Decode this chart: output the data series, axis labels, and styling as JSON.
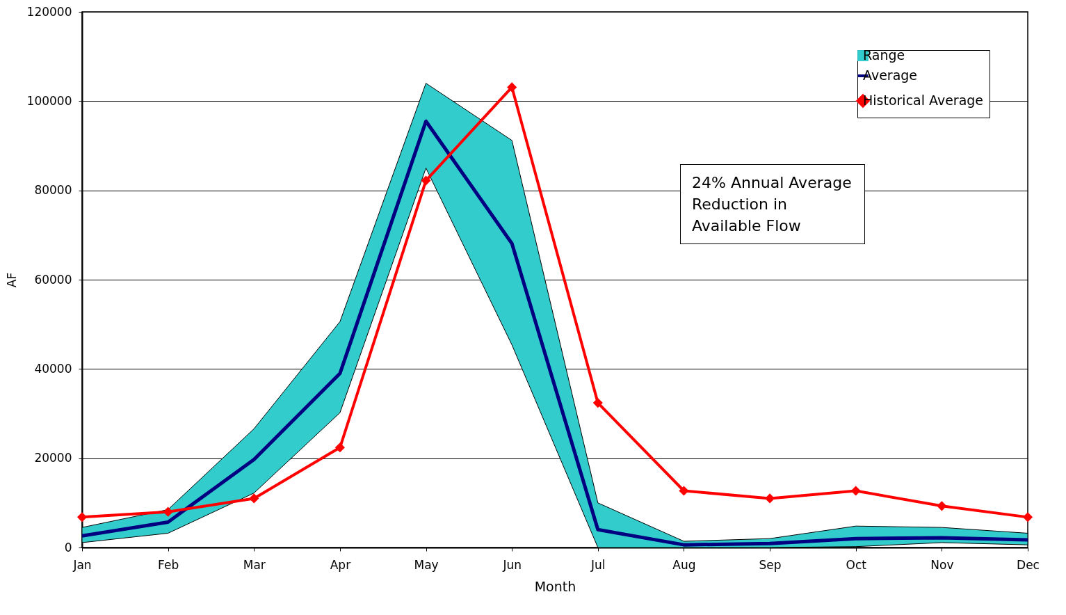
{
  "chart_data": {
    "type": "line",
    "xlabel": "Month",
    "ylabel": "AF",
    "categories": [
      "Jan",
      "Feb",
      "Mar",
      "Apr",
      "May",
      "Jun",
      "Jul",
      "Aug",
      "Sep",
      "Oct",
      "Nov",
      "Dec"
    ],
    "series": [
      {
        "name": "Range",
        "type": "area",
        "color": "#33cccc",
        "values": [
          null,
          null,
          null,
          null,
          null,
          null,
          null,
          null,
          null,
          null,
          null,
          null
        ],
        "lower": [
          1100,
          3200,
          12200,
          30200,
          85000,
          45400,
          0,
          0,
          0,
          200,
          1100,
          600
        ],
        "upper": [
          4500,
          8500,
          26600,
          50600,
          104000,
          91200,
          10000,
          1400,
          2000,
          4800,
          4500,
          3200
        ]
      },
      {
        "name": "Average",
        "color": "#000080",
        "values": [
          2600,
          5700,
          19700,
          39000,
          95500,
          68100,
          4000,
          600,
          900,
          2000,
          2200,
          1700
        ]
      },
      {
        "name": "Historical Average",
        "color": "#ff0000",
        "marker": "diamond",
        "values": [
          6800,
          8000,
          11000,
          22400,
          82200,
          103100,
          32400,
          12700,
          11000,
          12700,
          9300,
          6800
        ]
      }
    ],
    "ylim": [
      0,
      120000
    ],
    "yticks": [
      0,
      20000,
      40000,
      60000,
      80000,
      100000,
      120000
    ],
    "grid": "y",
    "legend": "top right",
    "annotations": [
      "24% Annual Average Reduction in Available Flow"
    ]
  }
}
